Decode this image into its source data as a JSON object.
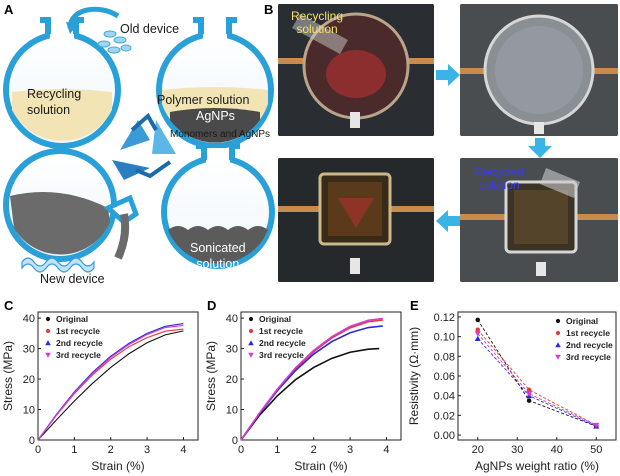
{
  "panels": {
    "A": {
      "letter": "A",
      "labels": {
        "old_device": "Old device",
        "recycling_solution": "Recycling\nsolution",
        "polymer_solution": "Polymer solution",
        "agnps": "AgNPs",
        "monomers": "Monomers and AgNPs",
        "new_device": "New device",
        "sonicated_solution": "Sonicated\nsolution"
      }
    },
    "B": {
      "letter": "B",
      "labels": {
        "recycling_solution": "Recycling\nsolution",
        "recycled_solution": "Recycled\nsolution"
      }
    },
    "C": {
      "letter": "C"
    },
    "D": {
      "letter": "D"
    },
    "E": {
      "letter": "E"
    }
  },
  "colors": {
    "original": "#111111",
    "r1": "#e23b3b",
    "r2": "#2b2bd6",
    "r3": "#d63bd6",
    "flask": "#2aa0d8",
    "arrow": "#3ab4e6"
  },
  "chart_data": [
    {
      "type": "line",
      "id": "C",
      "xlabel": "Strain (%)",
      "ylabel": "Stress (MPa)",
      "xlim": [
        0,
        4.4
      ],
      "ylim": [
        0,
        42
      ],
      "xticks": [
        0,
        1,
        2,
        3,
        4
      ],
      "yticks": [
        0,
        10,
        20,
        30,
        40
      ],
      "legend_position": "top-left",
      "series": [
        {
          "name": "Original",
          "color": "#111111",
          "marker": "circle",
          "x": [
            0,
            0.5,
            1.0,
            1.5,
            2.0,
            2.5,
            3.0,
            3.5,
            4.0
          ],
          "y": [
            0,
            6.5,
            12.8,
            18.6,
            23.8,
            28.3,
            31.9,
            34.5,
            35.8
          ]
        },
        {
          "name": "1st recycle",
          "color": "#e23b3b",
          "marker": "circle",
          "x": [
            0,
            0.5,
            1.0,
            1.5,
            2.0,
            2.5,
            3.0,
            3.5,
            4.0
          ],
          "y": [
            0,
            8.0,
            15.2,
            21.4,
            26.5,
            30.6,
            33.6,
            35.7,
            36.4
          ]
        },
        {
          "name": "2nd recycle",
          "color": "#2b2bd6",
          "marker": "triangle-up",
          "x": [
            0,
            0.5,
            1.0,
            1.5,
            2.0,
            2.5,
            3.0,
            3.5,
            4.0
          ],
          "y": [
            0,
            8.3,
            15.8,
            22.2,
            27.5,
            31.7,
            35.0,
            37.3,
            38.2
          ]
        },
        {
          "name": "3rd recycle",
          "color": "#d63bd6",
          "marker": "triangle-down",
          "x": [
            0,
            0.5,
            1.0,
            1.5,
            2.0,
            2.5,
            3.0,
            3.5,
            4.0
          ],
          "y": [
            0,
            8.1,
            15.5,
            21.8,
            27.1,
            31.3,
            34.6,
            36.9,
            37.6
          ]
        }
      ]
    },
    {
      "type": "line",
      "id": "D",
      "xlabel": "Strain (%)",
      "ylabel": "Stress (MPa)",
      "xlim": [
        0,
        4.4
      ],
      "ylim": [
        0,
        42
      ],
      "xticks": [
        0,
        1,
        2,
        3,
        4
      ],
      "yticks": [
        0,
        10,
        20,
        30,
        40
      ],
      "legend_position": "top-left",
      "series": [
        {
          "name": "Original",
          "color": "#111111",
          "marker": "circle",
          "x": [
            0,
            0.5,
            1.0,
            1.5,
            2.0,
            2.5,
            3.0,
            3.5,
            3.8
          ],
          "y": [
            0,
            8.0,
            14.5,
            19.8,
            23.8,
            26.8,
            28.8,
            29.8,
            30.0
          ]
        },
        {
          "name": "1st recycle",
          "color": "#e23b3b",
          "marker": "circle",
          "x": [
            0,
            0.5,
            1.0,
            1.5,
            2.0,
            2.5,
            3.0,
            3.5,
            3.9
          ],
          "y": [
            0,
            8.6,
            16.5,
            23.4,
            29.0,
            33.5,
            36.8,
            38.8,
            39.4
          ]
        },
        {
          "name": "2nd recycle",
          "color": "#2b2bd6",
          "marker": "triangle-up",
          "x": [
            0,
            0.5,
            1.0,
            1.5,
            2.0,
            2.5,
            3.0,
            3.5,
            3.9
          ],
          "y": [
            0,
            8.5,
            16.2,
            22.8,
            28.2,
            32.3,
            35.2,
            36.9,
            37.4
          ]
        },
        {
          "name": "3rd recycle",
          "color": "#d63bd6",
          "marker": "triangle-down",
          "x": [
            0,
            0.5,
            1.0,
            1.5,
            2.0,
            2.5,
            3.0,
            3.5,
            3.9
          ],
          "y": [
            0,
            8.7,
            16.7,
            23.7,
            29.4,
            33.9,
            37.3,
            39.3,
            39.9
          ]
        }
      ]
    },
    {
      "type": "line",
      "id": "E",
      "xlabel": "AgNPs weight ratio (%)",
      "ylabel": "Resistivity (Ω·mm)",
      "xlim": [
        15,
        55
      ],
      "ylim": [
        -0.005,
        0.125
      ],
      "xticks": [
        20,
        30,
        40,
        50
      ],
      "yticks": [
        0.0,
        0.02,
        0.04,
        0.06,
        0.08,
        0.1,
        0.12
      ],
      "ytick_labels": [
        "0.00",
        "0.02",
        "0.04",
        "0.06",
        "0.08",
        "0.10",
        "0.12"
      ],
      "legend_position": "top-right",
      "series": [
        {
          "name": "Original",
          "color": "#111111",
          "marker": "circle",
          "x": [
            20,
            33,
            50
          ],
          "y": [
            0.117,
            0.035,
            0.009
          ]
        },
        {
          "name": "1st recycle",
          "color": "#e23b3b",
          "marker": "circle",
          "x": [
            20,
            33,
            50
          ],
          "y": [
            0.107,
            0.046,
            0.01
          ]
        },
        {
          "name": "2nd recycle",
          "color": "#2b2bd6",
          "marker": "triangle-up",
          "x": [
            20,
            33,
            50
          ],
          "y": [
            0.098,
            0.04,
            0.009
          ]
        },
        {
          "name": "3rd recycle",
          "color": "#d63bd6",
          "marker": "triangle-down",
          "x": [
            20,
            33,
            50
          ],
          "y": [
            0.103,
            0.042,
            0.01
          ]
        }
      ]
    }
  ]
}
